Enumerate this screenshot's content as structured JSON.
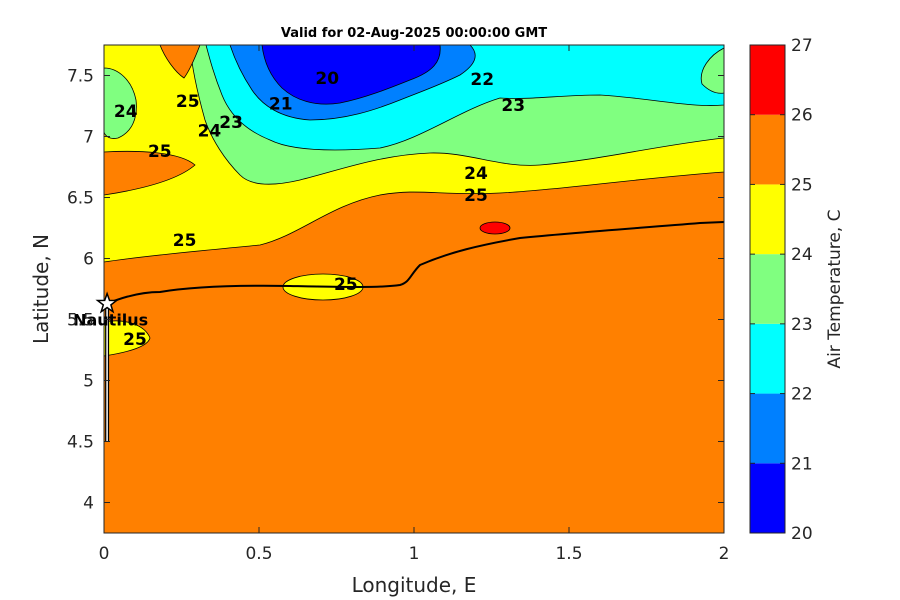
{
  "chart_data": {
    "type": "contour",
    "title": "Valid for 02-Aug-2025 00:00:00 GMT",
    "xlabel": "Longitude, E",
    "ylabel": "Latitude, N",
    "xlim": [
      0,
      2
    ],
    "ylim": [
      3.75,
      7.75
    ],
    "xticks": [
      "0",
      "0.5",
      "1",
      "1.5",
      "2"
    ],
    "yticks": [
      "4",
      "4.5",
      "5",
      "5.5",
      "6",
      "6.5",
      "7",
      "7.5"
    ],
    "colorbar": {
      "label": "Air Temperature, C",
      "ticks": [
        "20",
        "21",
        "22",
        "23",
        "24",
        "25",
        "26",
        "27"
      ],
      "levels": [
        20,
        21,
        22,
        23,
        24,
        25,
        26,
        27
      ],
      "colors": [
        "#0000ff",
        "#0080ff",
        "#00ffff",
        "#80ff80",
        "#ffff00",
        "#ff8000",
        "#ff0000",
        "#800000"
      ]
    },
    "contour_labels": [
      {
        "text": "20",
        "x": 0.72,
        "y": 7.48
      },
      {
        "text": "21",
        "x": 0.57,
        "y": 7.27
      },
      {
        "text": "22",
        "x": 1.22,
        "y": 7.47
      },
      {
        "text": "23",
        "x": 1.32,
        "y": 7.26
      },
      {
        "text": "24",
        "x": 0.07,
        "y": 7.21
      },
      {
        "text": "25",
        "x": 0.27,
        "y": 7.29
      },
      {
        "text": "23",
        "x": 0.41,
        "y": 7.12
      },
      {
        "text": "24",
        "x": 0.34,
        "y": 7.05
      },
      {
        "text": "25",
        "x": 0.18,
        "y": 6.88
      },
      {
        "text": "24",
        "x": 1.2,
        "y": 6.7
      },
      {
        "text": "25",
        "x": 1.2,
        "y": 6.52
      },
      {
        "text": "25",
        "x": 0.26,
        "y": 6.15
      },
      {
        "text": "25",
        "x": 0.78,
        "y": 5.79
      },
      {
        "text": "25",
        "x": 0.1,
        "y": 5.34
      }
    ],
    "marker": {
      "name": "Nautilus",
      "x": 0.01,
      "y": 5.63
    }
  }
}
